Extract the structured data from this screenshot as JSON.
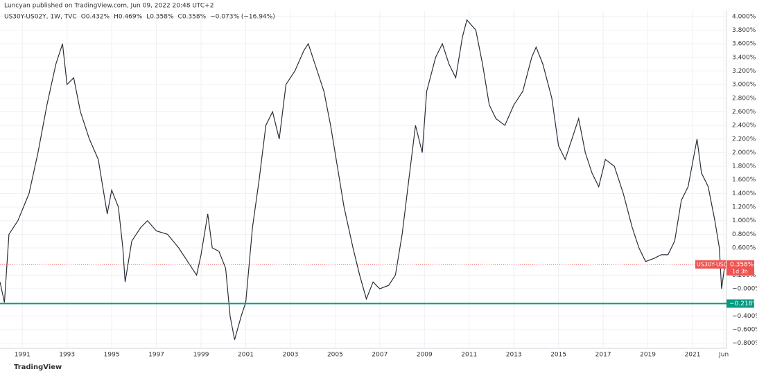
{
  "header": {
    "byline": "Luncyan published on TradingView.com, Jun 09, 2022 20:48 UTC+2",
    "legend": [
      "US30Y-US02Y, 1W, TVC",
      "O0.432%",
      "H0.469%",
      "L0.358%",
      "C0.358%",
      "−0.073% (−16.94%)"
    ],
    "logo": "TradingView"
  },
  "chart_data": {
    "type": "line",
    "color": "#2a2e39",
    "grid": true,
    "x": [
      1990.0,
      1990.2,
      1990.4,
      1990.8,
      1991.3,
      1991.7,
      1992.1,
      1992.5,
      1992.8,
      1993.0,
      1993.3,
      1993.6,
      1994.0,
      1994.4,
      1994.6,
      1994.8,
      1995.0,
      1995.3,
      1995.5,
      1995.6,
      1995.9,
      1996.3,
      1996.6,
      1997.0,
      1997.5,
      1998.0,
      1998.5,
      1998.8,
      1999.0,
      1999.3,
      1999.5,
      1999.8,
      2000.1,
      2000.3,
      2000.5,
      2000.8,
      2001.0,
      2001.3,
      2001.6,
      2001.9,
      2002.2,
      2002.5,
      2002.8,
      2003.2,
      2003.6,
      2003.8,
      2004.2,
      2004.5,
      2004.8,
      2005.1,
      2005.4,
      2005.8,
      2006.1,
      2006.4,
      2006.7,
      2007.0,
      2007.4,
      2007.7,
      2008.0,
      2008.3,
      2008.6,
      2008.9,
      2009.1,
      2009.5,
      2009.8,
      2010.1,
      2010.4,
      2010.7,
      2010.9,
      2011.3,
      2011.6,
      2011.9,
      2012.2,
      2012.6,
      2013.0,
      2013.4,
      2013.8,
      2014.0,
      2014.3,
      2014.7,
      2015.0,
      2015.3,
      2015.6,
      2015.9,
      2016.2,
      2016.5,
      2016.8,
      2017.1,
      2017.5,
      2017.9,
      2018.3,
      2018.6,
      2018.9,
      2019.3,
      2019.6,
      2019.9,
      2020.2,
      2020.5,
      2020.8,
      2021.2,
      2021.4,
      2021.7,
      2022.0,
      2022.2,
      2022.3,
      2022.45
    ],
    "values": [
      0.1,
      -0.2,
      0.8,
      1.0,
      1.4,
      2.0,
      2.7,
      3.3,
      3.6,
      3.0,
      3.1,
      2.6,
      2.2,
      1.9,
      1.5,
      1.1,
      1.45,
      1.2,
      0.6,
      0.1,
      0.7,
      0.9,
      1.0,
      0.85,
      0.8,
      0.6,
      0.35,
      0.2,
      0.5,
      1.1,
      0.6,
      0.55,
      0.3,
      -0.4,
      -0.75,
      -0.4,
      -0.2,
      0.9,
      1.6,
      2.4,
      2.6,
      2.2,
      3.0,
      3.2,
      3.5,
      3.6,
      3.2,
      2.9,
      2.4,
      1.8,
      1.2,
      0.6,
      0.2,
      -0.15,
      0.1,
      0.0,
      0.05,
      0.2,
      0.8,
      1.6,
      2.4,
      2.0,
      2.9,
      3.4,
      3.6,
      3.3,
      3.1,
      3.7,
      3.95,
      3.8,
      3.3,
      2.7,
      2.5,
      2.4,
      2.7,
      2.9,
      3.4,
      3.55,
      3.3,
      2.8,
      2.1,
      1.9,
      2.2,
      2.5,
      2.0,
      1.7,
      1.5,
      1.9,
      1.8,
      1.4,
      0.9,
      0.6,
      0.4,
      0.45,
      0.5,
      0.5,
      0.7,
      1.3,
      1.5,
      2.2,
      1.7,
      1.5,
      1.0,
      0.6,
      0.0,
      0.358
    ],
    "xlim": [
      1990.0,
      2022.52
    ],
    "xticks": [
      1991,
      1993,
      1995,
      1997,
      1999,
      2001,
      2003,
      2005,
      2007,
      2009,
      2011,
      2013,
      2015,
      2017,
      2019,
      2021,
      {
        "value": 2022.4,
        "label": "Jun"
      }
    ],
    "ylim": [
      -0.875,
      4.09
    ],
    "yticks": [
      {
        "value": 4,
        "label": "4.000%"
      },
      {
        "value": 3.8,
        "label": "3.800%"
      },
      {
        "value": 3.6,
        "label": "3.600%"
      },
      {
        "value": 3.4,
        "label": "3.400%"
      },
      {
        "value": 3.2,
        "label": "3.200%"
      },
      {
        "value": 3,
        "label": "3.000%"
      },
      {
        "value": 2.8,
        "label": "2.800%"
      },
      {
        "value": 2.6,
        "label": "2.600%"
      },
      {
        "value": 2.4,
        "label": "2.400%"
      },
      {
        "value": 2.2,
        "label": "2.200%"
      },
      {
        "value": 2,
        "label": "2.000%"
      },
      {
        "value": 1.8,
        "label": "1.800%"
      },
      {
        "value": 1.6,
        "label": "1.600%"
      },
      {
        "value": 1.4,
        "label": "1.400%"
      },
      {
        "value": 1.2,
        "label": "1.200%"
      },
      {
        "value": 1,
        "label": "1.000%"
      },
      {
        "value": 0.8,
        "label": "0.800%"
      },
      {
        "value": 0.6,
        "label": "0.600%"
      },
      {
        "value": 0.2,
        "label": "0.200%"
      },
      {
        "value": 0,
        "label": "−0.000%"
      },
      {
        "value": -0.4,
        "label": "−0.400%"
      },
      {
        "value": -0.6,
        "label": "−0.600%"
      },
      {
        "value": -0.8,
        "label": "−0.800%"
      }
    ],
    "last_price": {
      "name": "US30Y-US02Y",
      "value": 0.358,
      "label": "0.358%",
      "countdown": "1d 3h",
      "color": "#ef5350"
    },
    "level": {
      "value": -0.218,
      "label": "−0.218%",
      "color": "#089981"
    }
  }
}
